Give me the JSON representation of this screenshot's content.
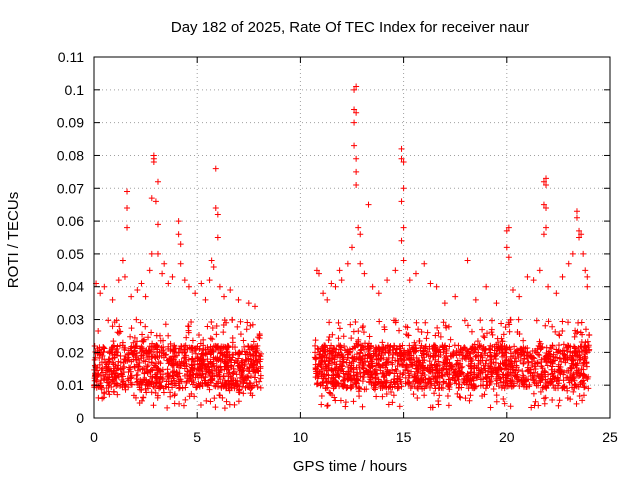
{
  "chart_data": {
    "type": "scatter",
    "title": "Day 182 of 2025, Rate Of TEC Index for receiver naur",
    "xlabel": "GPS time / hours",
    "ylabel": "ROTI / TECUs",
    "xlim": [
      0,
      25
    ],
    "ylim": [
      0,
      0.11
    ],
    "xticks": [
      0,
      5,
      10,
      15,
      20,
      25
    ],
    "yticks": [
      0,
      0.01,
      0.02,
      0.03,
      0.04,
      0.05,
      0.06,
      0.07,
      0.08,
      0.09,
      0.1,
      0.11
    ],
    "grid": true,
    "marker": "plus",
    "color": "#ff0000",
    "dense_bands": [
      {
        "x_start": 0.0,
        "x_end": 8.1,
        "y_low": 0.006,
        "y_high": 0.03
      },
      {
        "x_start": 10.7,
        "x_end": 24.0,
        "y_low": 0.006,
        "y_high": 0.03
      }
    ],
    "outliers": [
      {
        "x": 0.1,
        "y": 0.041
      },
      {
        "x": 0.3,
        "y": 0.038
      },
      {
        "x": 0.5,
        "y": 0.04
      },
      {
        "x": 0.9,
        "y": 0.036
      },
      {
        "x": 1.2,
        "y": 0.042
      },
      {
        "x": 1.4,
        "y": 0.048
      },
      {
        "x": 1.5,
        "y": 0.043
      },
      {
        "x": 1.6,
        "y": 0.069
      },
      {
        "x": 1.6,
        "y": 0.064
      },
      {
        "x": 1.6,
        "y": 0.058
      },
      {
        "x": 1.8,
        "y": 0.037
      },
      {
        "x": 2.1,
        "y": 0.039
      },
      {
        "x": 2.3,
        "y": 0.041
      },
      {
        "x": 2.5,
        "y": 0.037
      },
      {
        "x": 2.7,
        "y": 0.045
      },
      {
        "x": 2.8,
        "y": 0.05
      },
      {
        "x": 2.8,
        "y": 0.067
      },
      {
        "x": 2.9,
        "y": 0.08
      },
      {
        "x": 2.9,
        "y": 0.079
      },
      {
        "x": 2.9,
        "y": 0.078
      },
      {
        "x": 3.0,
        "y": 0.066
      },
      {
        "x": 3.1,
        "y": 0.059
      },
      {
        "x": 3.1,
        "y": 0.072
      },
      {
        "x": 3.1,
        "y": 0.05
      },
      {
        "x": 3.3,
        "y": 0.044
      },
      {
        "x": 3.4,
        "y": 0.047
      },
      {
        "x": 3.6,
        "y": 0.041
      },
      {
        "x": 3.8,
        "y": 0.043
      },
      {
        "x": 4.1,
        "y": 0.06
      },
      {
        "x": 4.1,
        "y": 0.056
      },
      {
        "x": 4.2,
        "y": 0.053
      },
      {
        "x": 4.2,
        "y": 0.047
      },
      {
        "x": 4.4,
        "y": 0.042
      },
      {
        "x": 4.6,
        "y": 0.04
      },
      {
        "x": 4.9,
        "y": 0.038
      },
      {
        "x": 5.2,
        "y": 0.041
      },
      {
        "x": 5.4,
        "y": 0.036
      },
      {
        "x": 5.6,
        "y": 0.042
      },
      {
        "x": 5.7,
        "y": 0.048
      },
      {
        "x": 5.8,
        "y": 0.046
      },
      {
        "x": 5.9,
        "y": 0.076
      },
      {
        "x": 5.9,
        "y": 0.064
      },
      {
        "x": 6.0,
        "y": 0.062
      },
      {
        "x": 6.0,
        "y": 0.055
      },
      {
        "x": 6.1,
        "y": 0.04
      },
      {
        "x": 6.3,
        "y": 0.037
      },
      {
        "x": 6.6,
        "y": 0.039
      },
      {
        "x": 7.0,
        "y": 0.036
      },
      {
        "x": 7.5,
        "y": 0.035
      },
      {
        "x": 7.8,
        "y": 0.034
      },
      {
        "x": 10.8,
        "y": 0.045
      },
      {
        "x": 10.9,
        "y": 0.044
      },
      {
        "x": 11.1,
        "y": 0.038
      },
      {
        "x": 11.3,
        "y": 0.036
      },
      {
        "x": 11.5,
        "y": 0.041
      },
      {
        "x": 11.7,
        "y": 0.04
      },
      {
        "x": 11.9,
        "y": 0.045
      },
      {
        "x": 12.0,
        "y": 0.042
      },
      {
        "x": 12.3,
        "y": 0.047
      },
      {
        "x": 12.5,
        "y": 0.052
      },
      {
        "x": 12.6,
        "y": 0.1
      },
      {
        "x": 12.7,
        "y": 0.101
      },
      {
        "x": 12.6,
        "y": 0.094
      },
      {
        "x": 12.7,
        "y": 0.093
      },
      {
        "x": 12.6,
        "y": 0.09
      },
      {
        "x": 12.6,
        "y": 0.083
      },
      {
        "x": 12.7,
        "y": 0.079
      },
      {
        "x": 12.7,
        "y": 0.075
      },
      {
        "x": 12.7,
        "y": 0.071
      },
      {
        "x": 12.8,
        "y": 0.058
      },
      {
        "x": 12.9,
        "y": 0.056
      },
      {
        "x": 12.9,
        "y": 0.047
      },
      {
        "x": 13.1,
        "y": 0.044
      },
      {
        "x": 13.3,
        "y": 0.065
      },
      {
        "x": 13.5,
        "y": 0.04
      },
      {
        "x": 13.8,
        "y": 0.038
      },
      {
        "x": 14.2,
        "y": 0.042
      },
      {
        "x": 14.6,
        "y": 0.045
      },
      {
        "x": 14.9,
        "y": 0.082
      },
      {
        "x": 14.9,
        "y": 0.079
      },
      {
        "x": 15.0,
        "y": 0.078
      },
      {
        "x": 15.0,
        "y": 0.07
      },
      {
        "x": 14.9,
        "y": 0.066
      },
      {
        "x": 15.0,
        "y": 0.058
      },
      {
        "x": 14.9,
        "y": 0.054
      },
      {
        "x": 15.0,
        "y": 0.048
      },
      {
        "x": 15.3,
        "y": 0.042
      },
      {
        "x": 15.6,
        "y": 0.044
      },
      {
        "x": 16.0,
        "y": 0.047
      },
      {
        "x": 16.3,
        "y": 0.041
      },
      {
        "x": 16.6,
        "y": 0.04
      },
      {
        "x": 17.0,
        "y": 0.035
      },
      {
        "x": 17.5,
        "y": 0.037
      },
      {
        "x": 18.1,
        "y": 0.048
      },
      {
        "x": 18.5,
        "y": 0.036
      },
      {
        "x": 19.0,
        "y": 0.04
      },
      {
        "x": 19.5,
        "y": 0.035
      },
      {
        "x": 20.0,
        "y": 0.057
      },
      {
        "x": 20.0,
        "y": 0.052
      },
      {
        "x": 20.1,
        "y": 0.049
      },
      {
        "x": 20.1,
        "y": 0.058
      },
      {
        "x": 20.3,
        "y": 0.039
      },
      {
        "x": 20.6,
        "y": 0.037
      },
      {
        "x": 21.0,
        "y": 0.043
      },
      {
        "x": 21.3,
        "y": 0.042
      },
      {
        "x": 21.6,
        "y": 0.045
      },
      {
        "x": 21.8,
        "y": 0.072
      },
      {
        "x": 21.9,
        "y": 0.073
      },
      {
        "x": 21.9,
        "y": 0.071
      },
      {
        "x": 21.8,
        "y": 0.065
      },
      {
        "x": 21.9,
        "y": 0.064
      },
      {
        "x": 21.9,
        "y": 0.058
      },
      {
        "x": 21.8,
        "y": 0.056
      },
      {
        "x": 22.0,
        "y": 0.04
      },
      {
        "x": 22.4,
        "y": 0.038
      },
      {
        "x": 22.7,
        "y": 0.043
      },
      {
        "x": 23.0,
        "y": 0.047
      },
      {
        "x": 23.2,
        "y": 0.05
      },
      {
        "x": 23.4,
        "y": 0.063
      },
      {
        "x": 23.4,
        "y": 0.061
      },
      {
        "x": 23.5,
        "y": 0.057
      },
      {
        "x": 23.5,
        "y": 0.055
      },
      {
        "x": 23.6,
        "y": 0.056
      },
      {
        "x": 23.7,
        "y": 0.05
      },
      {
        "x": 23.8,
        "y": 0.045
      },
      {
        "x": 23.9,
        "y": 0.043
      },
      {
        "x": 23.9,
        "y": 0.04
      }
    ]
  }
}
